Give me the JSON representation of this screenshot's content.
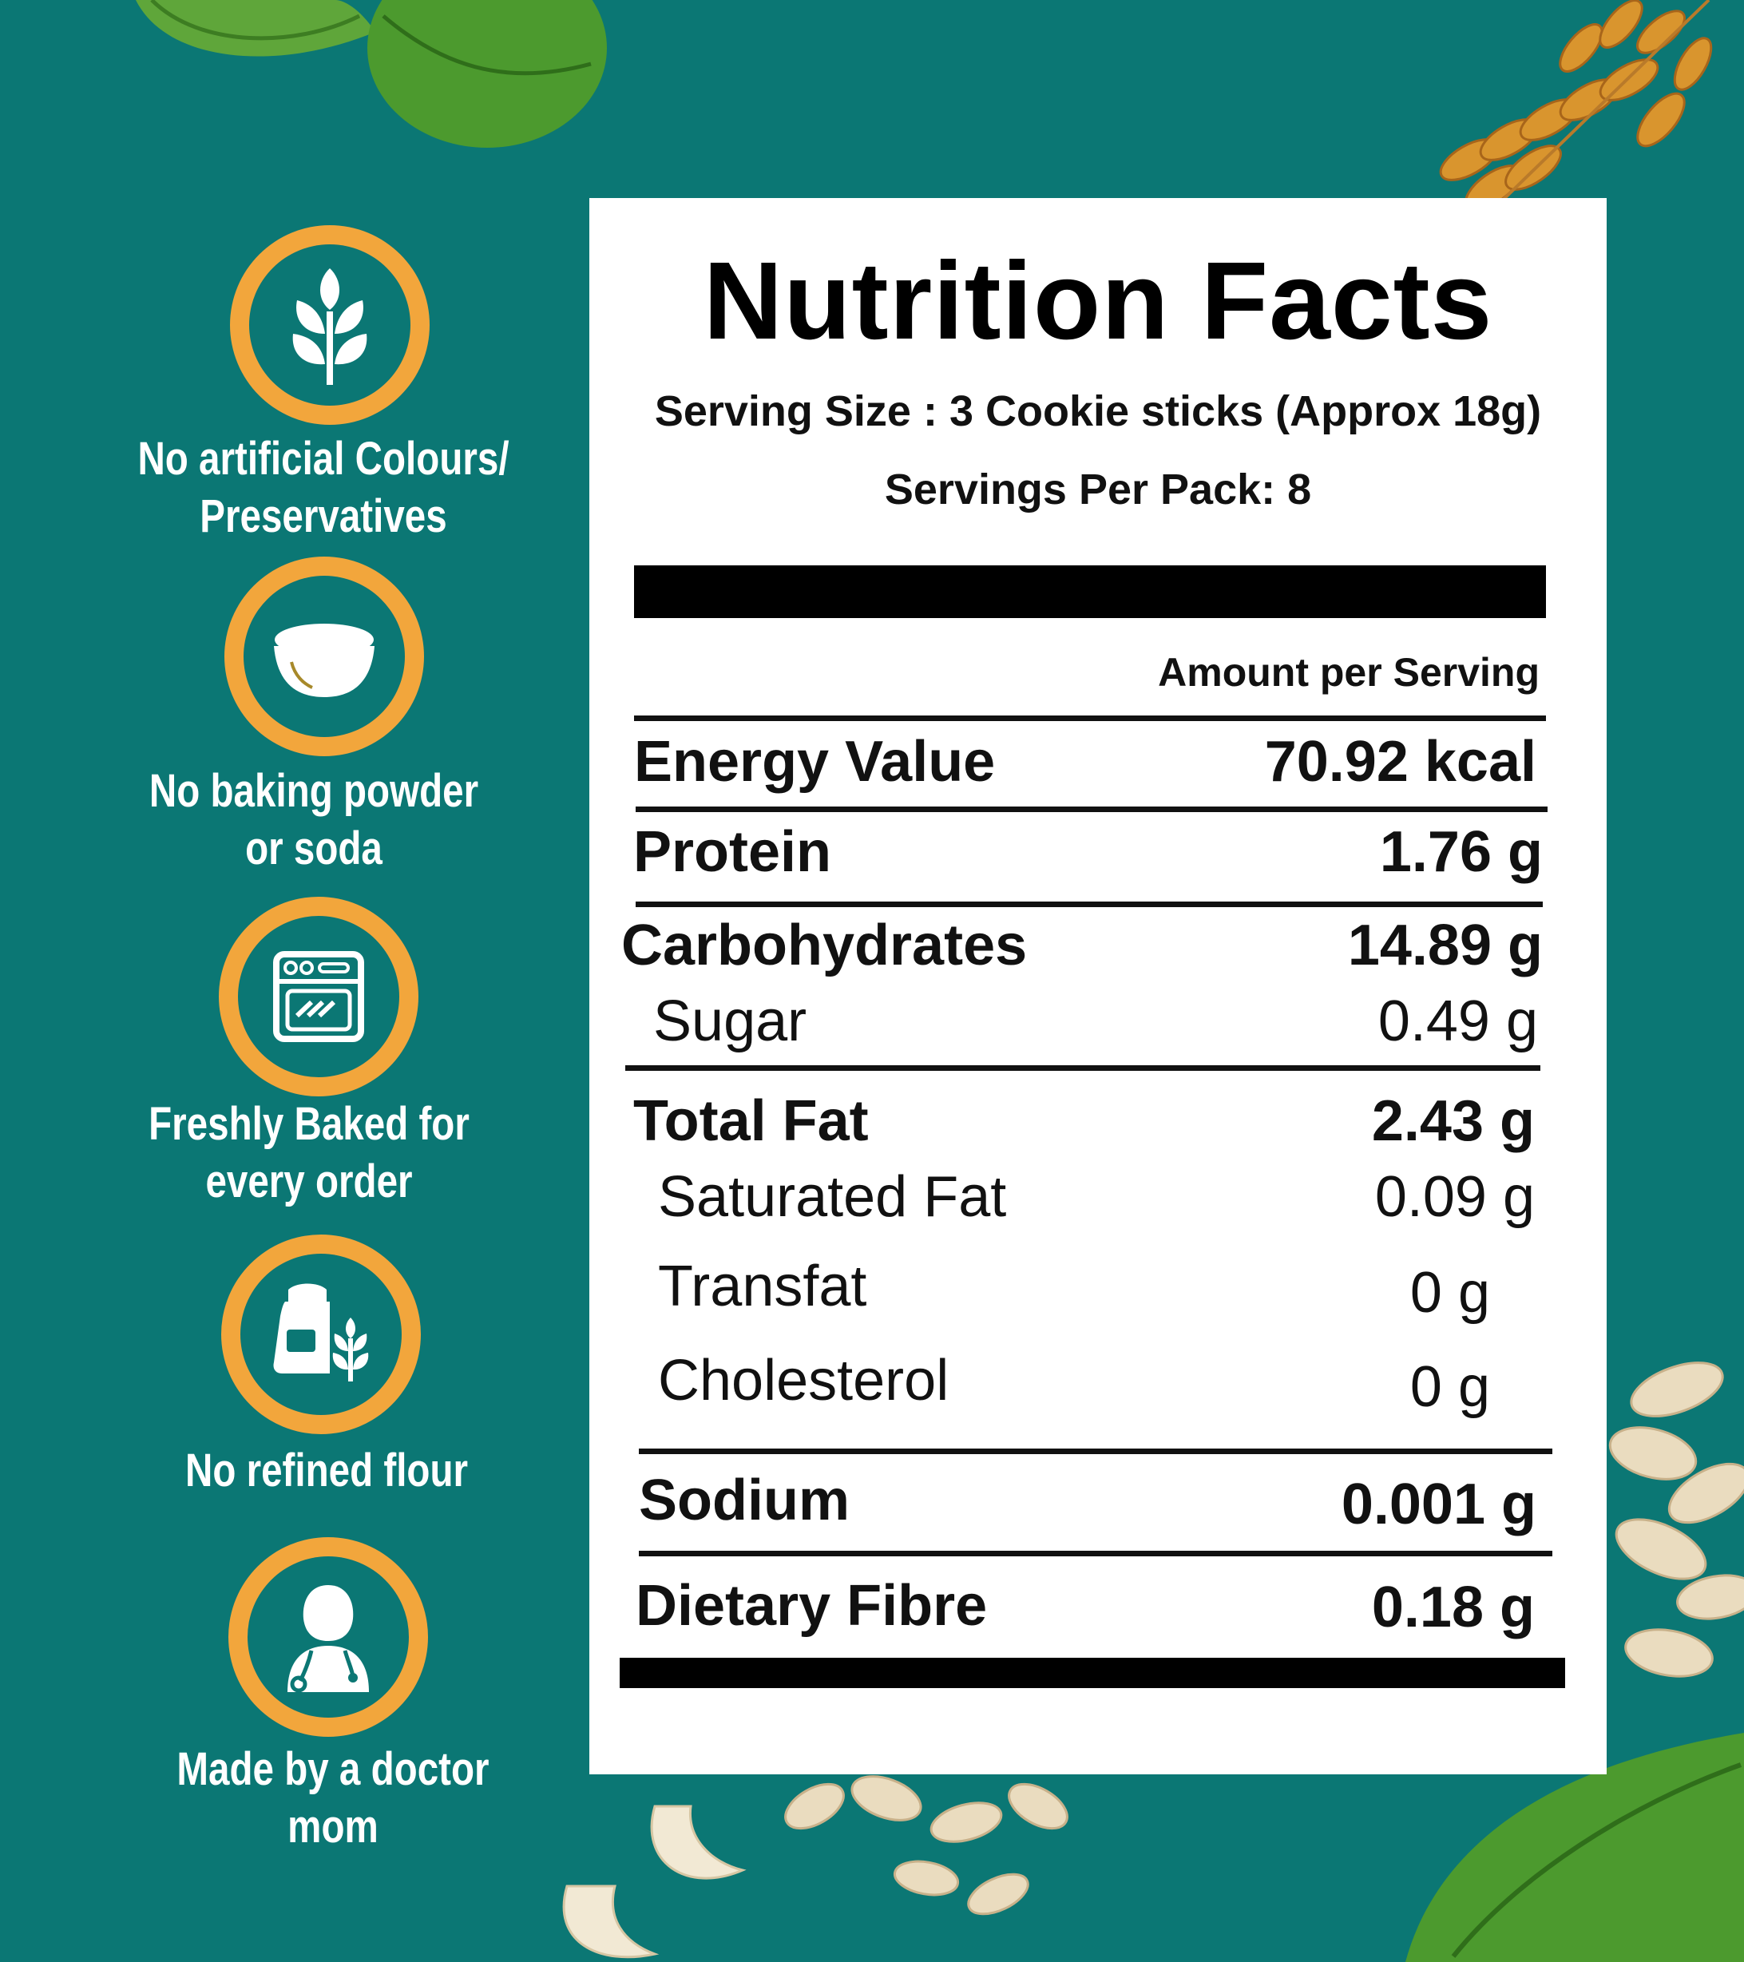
{
  "features": [
    {
      "icon": "wheat-icon",
      "lines": [
        "No artificial Colours/",
        "Preservatives"
      ]
    },
    {
      "icon": "bowl-icon",
      "lines": [
        "No baking powder",
        "or soda"
      ]
    },
    {
      "icon": "oven-icon",
      "lines": [
        "Freshly Baked for",
        "every order"
      ]
    },
    {
      "icon": "flour-sack-icon",
      "lines": [
        "No refined flour"
      ]
    },
    {
      "icon": "doctor-icon",
      "lines": [
        "Made by a doctor mom"
      ]
    }
  ],
  "colors": {
    "background": "#0b7774",
    "badge_ring": "#f2a63c",
    "panel": "#ffffff",
    "text_dark": "#111111"
  },
  "nutrition": {
    "title": "Nutrition Facts",
    "serving_size": "Serving Size : 3 Cookie sticks (Approx 18g)",
    "servings_per_pack": "Servings Per Pack: 8",
    "amount_header": "Amount per Serving",
    "rows": [
      {
        "label": "Energy Value",
        "value": "70.92 kcal"
      },
      {
        "label": "Protein",
        "value": "1.76 g"
      },
      {
        "label": "Carbohydrates",
        "value": "14.89 g"
      },
      {
        "label": "Sugar",
        "value": "0.49 g"
      },
      {
        "label": "Total Fat",
        "value": "2.43 g"
      },
      {
        "label": "Saturated Fat",
        "value": "0.09 g"
      },
      {
        "label": "Transfat",
        "value": "0 g"
      },
      {
        "label": "Cholesterol",
        "value": "0 g"
      },
      {
        "label": "Sodium",
        "value": "0.001 g"
      },
      {
        "label": "Dietary Fibre",
        "value": "0.18 g"
      }
    ]
  }
}
